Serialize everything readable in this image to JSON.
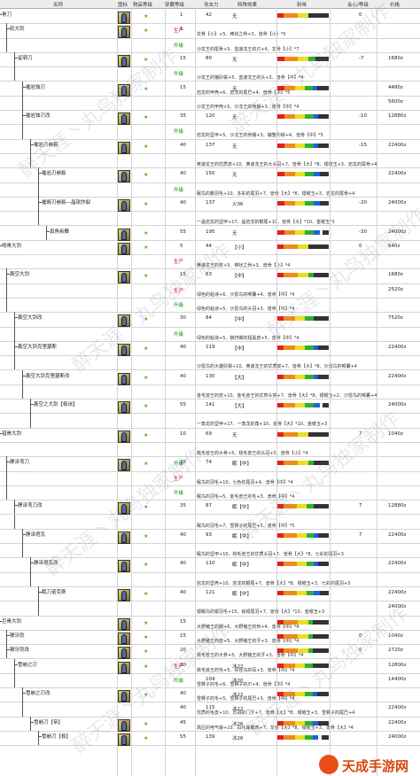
{
  "header": {
    "name": "名称",
    "icon": "图标",
    "rarity": "物品等级",
    "slots": "穿戴等级",
    "attack": "攻击力",
    "special": "特殊效果",
    "sharpness": "斩味",
    "affinity": "会心/等级",
    "price": "价格"
  },
  "colors": {
    "tag_produce": "#e00000",
    "tag_upgrade": "#008800",
    "sharp_red": "#e02020",
    "sharp_orange": "#f08a1c",
    "sharp_yellow": "#e8e020",
    "sharp_green": "#30b030",
    "sharp_blue": "#2060e0",
    "sharp_white": "#f4f4f4",
    "sharp_purple": "#9030c0"
  },
  "watermark": "醉天涯丶丸鸟独家制作",
  "logo": "天成手游网",
  "rows": [
    {
      "name": "骨刀",
      "indent": 0,
      "slot": "1",
      "atk": "42",
      "special": "无",
      "aff": "0",
      "price": "",
      "tag": "",
      "mats": "",
      "sharp": [
        8,
        20,
        14,
        0,
        0,
        0,
        0
      ]
    },
    {
      "name": "轮大剑",
      "indent": 1,
      "slot": "1",
      "atk": "",
      "special": "",
      "aff": "",
      "price": "",
      "tag": "生产",
      "mats": "龙骨【小】+5、棒状之骨+3、兽骨【小】*5",
      "sharp": [
        0,
        0,
        0,
        0,
        0,
        0,
        0
      ]
    },
    {
      "name": "",
      "indent": 1,
      "slot": "",
      "atk": "",
      "special": "",
      "aff": "",
      "price": "",
      "tag": "升级",
      "mats": "沙龙王的尾骨+5、蓝速龙王的爪+4、龙骨【小】*7",
      "sharp": [
        0,
        0,
        0,
        0,
        0,
        0,
        0
      ]
    },
    {
      "name": "鲨颚刀",
      "indent": 2,
      "slot": "15",
      "atk": "80",
      "special": "无",
      "aff": "-7",
      "price": "1680z",
      "tag": "",
      "mats": "",
      "sharp": [
        10,
        18,
        14,
        10,
        0,
        0,
        0
      ]
    },
    {
      "name": "",
      "indent": 2,
      "slot": "",
      "atk": "",
      "special": "",
      "aff": "",
      "price": "",
      "tag": "升级",
      "mats": "沙龙王的猪砂袋+5、蓝速龙王的头+3、兽骨【中】*4",
      "sharp": [
        0,
        0,
        0,
        0,
        0,
        0,
        0
      ]
    },
    {
      "name": "摧岩蚀刃",
      "indent": 3,
      "slot": "15",
      "atk": "",
      "special": "无",
      "aff": "",
      "price": "4480z",
      "tag": "",
      "mats": "岩龙的甲壳+6、岩龙的尾巴+4、兽骨【中】*5",
      "sharp": [
        10,
        14,
        14,
        10,
        6,
        0,
        0
      ]
    },
    {
      "name": "",
      "indent": 3,
      "slot": "",
      "atk": "",
      "special": "",
      "aff": "",
      "price": "5600z",
      "tag": "",
      "mats": "沙龙王的甲壳+5、沙龙王的骨髓+3、兽骨【中】*4",
      "sharp": [
        0,
        0,
        0,
        0,
        0,
        0,
        0
      ]
    },
    {
      "name": "摧岩蚀刃改",
      "indent": 3,
      "slot": "35",
      "atk": "120",
      "special": "无",
      "aff": "-10",
      "price": "12880z",
      "tag": "",
      "mats": "",
      "sharp": [
        10,
        14,
        14,
        12,
        6,
        0,
        0
      ]
    },
    {
      "name": "",
      "indent": 3,
      "slot": "",
      "atk": "",
      "special": "",
      "aff": "",
      "price": "",
      "tag": "升级",
      "mats": "岩龙的坚甲+5、沙龙王的骨髓+3、镰蟹的钳+4、兽骨【中】*5",
      "sharp": [
        0,
        0,
        0,
        0,
        0,
        0,
        0
      ]
    },
    {
      "name": "摧岩刃崩裂",
      "indent": 4,
      "slot": "40",
      "atk": "137",
      "special": "无",
      "aff": "-15",
      "price": "22400z",
      "tag": "",
      "mats": "",
      "sharp": [
        10,
        14,
        14,
        12,
        6,
        0,
        0
      ]
    },
    {
      "name": "",
      "indent": 4,
      "slot": "",
      "atk": "",
      "special": "",
      "aff": "",
      "price": "",
      "tag": "",
      "mats": "黄速龙王的优质皮+10、黄速龙王的大头冠+7、兽骨【大】*8、银曜玉+3、岩龙的尾骨+4",
      "sharp": [
        0,
        0,
        0,
        0,
        0,
        0,
        0
      ]
    },
    {
      "name": "摧岩刃崩裂",
      "indent": 5,
      "slot": "40",
      "atk": "150",
      "special": "无",
      "aff": "",
      "price": "22400z",
      "tag": "",
      "mats": "",
      "sharp": [
        10,
        14,
        14,
        12,
        8,
        0,
        0
      ]
    },
    {
      "name": "",
      "indent": 5,
      "slot": "",
      "atk": "",
      "special": "",
      "aff": "",
      "price": "",
      "tag": "升级",
      "mats": "眠鸟的霸羽毛+10、多彩的尾羽+7、兽骨【大】*8、银曜玉+3、岩龙的尾骨+4",
      "sharp": [
        0,
        0,
        0,
        0,
        0,
        0,
        0
      ]
    },
    {
      "name": "摧毁刃崩裂—晶锐炸裂",
      "indent": 5,
      "slot": "40",
      "atk": "137",
      "special": "火36",
      "aff": "-20",
      "price": "24000z",
      "tag": "",
      "mats": "",
      "sharp": [
        10,
        14,
        14,
        12,
        8,
        0,
        0
      ]
    },
    {
      "name": "",
      "indent": 5,
      "slot": "",
      "atk": "",
      "special": "",
      "aff": "",
      "price": "",
      "tag": "",
      "mats": "一晶岩龙的坚甲+17、晶岩龙的鞭尾+10、兽骨【大】*10、金曜玉*3",
      "sharp": [
        0,
        0,
        0,
        0,
        0,
        0,
        0
      ]
    },
    {
      "name": "真角拆舞",
      "indent": 6,
      "slot": "55",
      "atk": "195",
      "special": "无",
      "aff": "-30",
      "price": "24000z",
      "tag": "",
      "mats": "",
      "sharp": [
        10,
        14,
        14,
        12,
        8,
        4,
        0
      ]
    },
    {
      "name": "啃骨大剑",
      "indent": 0,
      "slot": "5",
      "atk": "44",
      "special": "【小】",
      "aff": "0",
      "price": "640z",
      "tag": "",
      "mats": "",
      "sharp": [
        8,
        20,
        14,
        0,
        0,
        0,
        0
      ]
    },
    {
      "name": "",
      "indent": 0,
      "slot": "",
      "atk": "",
      "special": "",
      "aff": "",
      "price": "",
      "tag": "生产",
      "mats": "黄速龙王的皮+5、棒状之骨+3、兽骨【小】*4",
      "sharp": [
        0,
        0,
        0,
        0,
        0,
        0,
        0
      ]
    },
    {
      "name": "轰空大剑",
      "indent": 1,
      "slot": "15",
      "atk": "63",
      "special": "【中】",
      "aff": "",
      "price": "1680z",
      "tag": "",
      "mats": "",
      "sharp": [
        8,
        20,
        14,
        8,
        0,
        0,
        0
      ]
    },
    {
      "name": "",
      "indent": 1,
      "slot": "",
      "atk": "",
      "special": "",
      "aff": "",
      "price": "2520z",
      "tag": "生产",
      "mats": "绿色的粘液+6、沙雷鸟的喉囊+4、兽骨【中】*4",
      "sharp": [
        0,
        0,
        0,
        0,
        0,
        0,
        0
      ]
    },
    {
      "name": "",
      "indent": 1,
      "slot": "",
      "atk": "",
      "special": "",
      "aff": "",
      "price": "",
      "tag": "升级",
      "mats": "绿色的粘液+5、沙雷鸟的头冠+3、兽骨【中】*4",
      "sharp": [
        0,
        0,
        0,
        0,
        0,
        0,
        0
      ]
    },
    {
      "name": "轰空大剑改",
      "indent": 2,
      "slot": "30",
      "atk": "84",
      "special": "【中】",
      "aff": "",
      "price": "7520z",
      "tag": "",
      "mats": "",
      "sharp": [
        8,
        16,
        14,
        12,
        0,
        0,
        0
      ]
    },
    {
      "name": "",
      "indent": 2,
      "slot": "",
      "atk": "",
      "special": "",
      "aff": "",
      "price": "",
      "tag": "升级",
      "mats": "绿色的粘液+5、狼狩蝶的翅黑皮+5、兽骨【中】*4",
      "sharp": [
        0,
        0,
        0,
        0,
        0,
        0,
        0
      ]
    },
    {
      "name": "轰空大剑克里瑟斯",
      "indent": 2,
      "slot": "40",
      "atk": "119",
      "special": "【中】",
      "aff": "",
      "price": "22400z",
      "tag": "",
      "mats": "",
      "sharp": [
        8,
        16,
        14,
        12,
        6,
        0,
        0
      ]
    },
    {
      "name": "",
      "indent": 2,
      "slot": "",
      "atk": "",
      "special": "",
      "aff": "",
      "price": "",
      "tag": "",
      "mats": "沙雷鸟的大雄砂袋+10、黄速龙王的优质皮+7、兽骨【大】*8、沙雷鸟的喉囊+4",
      "sharp": [
        0,
        0,
        0,
        0,
        0,
        0,
        0
      ]
    },
    {
      "name": "轰空大剑克里瑟斯改",
      "indent": 3,
      "slot": "40",
      "atk": "130",
      "special": "【大】",
      "aff": "",
      "price": "22400z",
      "tag": "",
      "mats": "",
      "sharp": [
        8,
        16,
        14,
        12,
        6,
        0,
        0
      ]
    },
    {
      "name": "",
      "indent": 3,
      "slot": "",
      "atk": "",
      "special": "",
      "aff": "",
      "price": "",
      "tag": "",
      "mats": "金毛兽王的皮+10、金毛兽王的优势头突+7、兽骨【大】*8、银曜玉+2、沙雷鸟的喉囊+4",
      "sharp": [
        0,
        0,
        0,
        0,
        0,
        0,
        0
      ]
    },
    {
      "name": "轰空之大剑【极诀】",
      "indent": 4,
      "slot": "55",
      "atk": "141",
      "special": "【大】",
      "aff": "",
      "price": "24000z",
      "tag": "",
      "mats": "",
      "sharp": [
        8,
        16,
        14,
        12,
        8,
        4,
        0
      ]
    },
    {
      "name": "",
      "indent": 4,
      "slot": "",
      "atk": "",
      "special": "",
      "aff": "",
      "price": "",
      "tag": "",
      "mats": "一角龙的坚甲+17、一角龙的角+10、兽骨【大】*10、金曜玉+3",
      "sharp": [
        0,
        0,
        0,
        0,
        0,
        0,
        0
      ]
    },
    {
      "name": "猎骨大剑",
      "indent": 0,
      "slot": "10",
      "atk": "69",
      "special": "无",
      "aff": "7",
      "price": "1040z",
      "tag": "",
      "mats": "",
      "sharp": [
        8,
        20,
        14,
        0,
        0,
        0,
        0
      ]
    },
    {
      "name": "",
      "indent": 0,
      "slot": "",
      "atk": "",
      "special": "",
      "aff": "",
      "price": "",
      "tag": "",
      "mats": "桃毛兽王的大骨+5、桃毛兽王的头冠+5、兽骨【小】*4",
      "sharp": [
        0,
        0,
        0,
        0,
        0,
        0,
        0
      ]
    },
    {
      "name": "静泽弯刀",
      "indent": 1,
      "slot": "25",
      "atk": "74",
      "special": "眠【中】",
      "aff": "",
      "price": "",
      "tag": "升级",
      "mats": "",
      "sharp": [
        8,
        20,
        14,
        8,
        0,
        0,
        0
      ]
    },
    {
      "name": "",
      "indent": 1,
      "slot": "",
      "atk": "",
      "special": "",
      "aff": "",
      "price": "",
      "tag": "生产",
      "mats": "眠鸟的羽毛+10、七色的尾羽+4、兽骨【中】*4",
      "sharp": [
        0,
        0,
        0,
        0,
        0,
        0,
        0
      ]
    },
    {
      "name": "",
      "indent": 1,
      "slot": "",
      "atk": "",
      "special": "",
      "aff": "",
      "price": "",
      "tag": "升级",
      "mats": "眠鸟的羽毛+5、金毛兽王的毛+3、兽骨【中】*4",
      "sharp": [
        0,
        0,
        0,
        0,
        0,
        0,
        0
      ]
    },
    {
      "name": "静泽弯刀改",
      "indent": 2,
      "slot": "35",
      "atk": "87",
      "special": "眠【中】",
      "aff": "7",
      "price": "12880z",
      "tag": "",
      "mats": "",
      "sharp": [
        8,
        18,
        14,
        10,
        0,
        0,
        0
      ]
    },
    {
      "name": "",
      "indent": 2,
      "slot": "",
      "atk": "",
      "special": "",
      "aff": "",
      "price": "",
      "tag": "",
      "mats": "眠鸟的羽毛+7、雪狮子的尾巴+5、兽骨【中】*5",
      "sharp": [
        0,
        0,
        0,
        0,
        0,
        0,
        0
      ]
    },
    {
      "name": "静泽塔瓦",
      "indent": 3,
      "slot": "40",
      "atk": "93",
      "special": "眠【中】",
      "aff": "7",
      "price": "22400z",
      "tag": "",
      "mats": "",
      "sharp": [
        8,
        18,
        14,
        10,
        6,
        0,
        0
      ]
    },
    {
      "name": "",
      "indent": 3,
      "slot": "",
      "atk": "",
      "special": "",
      "aff": "",
      "price": "",
      "tag": "",
      "mats": "眠鸟的坚甲+10、桃毛兽王的优质头冠+7、兽骨【大】*8、七彩的尾羽+3",
      "sharp": [
        0,
        0,
        0,
        0,
        0,
        0,
        0
      ]
    },
    {
      "name": "静泽塔瓦改",
      "indent": 4,
      "slot": "40",
      "atk": "110",
      "special": "眠【中】",
      "aff": "",
      "price": "22400z",
      "tag": "",
      "mats": "",
      "sharp": [
        8,
        18,
        14,
        10,
        6,
        0,
        0
      ]
    },
    {
      "name": "",
      "indent": 4,
      "slot": "",
      "atk": "",
      "special": "",
      "aff": "",
      "price": "",
      "tag": "",
      "mats": "岩龙的坚壳+10、岩龙的鞭尾+7、兽骨【大】*8、银曜玉+3、七彩的尾羽+3",
      "sharp": [
        0,
        0,
        0,
        0,
        0,
        0,
        0
      ]
    },
    {
      "name": "眠刀诺克斯",
      "indent": 5,
      "slot": "40",
      "atk": "121",
      "special": "眠【中】",
      "aff": "",
      "price": "22400z",
      "tag": "",
      "mats": "",
      "sharp": [
        8,
        18,
        14,
        10,
        8,
        0,
        0
      ]
    },
    {
      "name": "",
      "indent": 5,
      "slot": "",
      "atk": "",
      "special": "",
      "aff": "",
      "price": "24000z",
      "tag": "",
      "mats": "银眠鸟的银羽毛+15、秘银尾羽+7、兽骨【大】*10、金曜玉+3",
      "sharp": [
        0,
        0,
        0,
        0,
        0,
        0,
        0
      ]
    },
    {
      "name": "巨骨大剑",
      "indent": 0,
      "slot": "15",
      "atk": "",
      "special": "",
      "aff": "",
      "price": "",
      "tag": "",
      "mats": "大野猪王的髓+6、大野猪王的骨+4、兽骨【中】*4",
      "sharp": [
        8,
        20,
        14,
        6,
        0,
        0,
        0
      ]
    },
    {
      "name": "獠牙剑",
      "indent": 1,
      "slot": "15",
      "atk": "",
      "special": "",
      "aff": "0",
      "price": "1040z",
      "tag": "",
      "mats": "大野猪王的皮+5、大野猪王的牙+3、兽骨【中】*4",
      "sharp": [
        8,
        20,
        14,
        6,
        0,
        0,
        0
      ]
    },
    {
      "name": "獠牙剑改",
      "indent": 1,
      "slot": "20",
      "atk": "",
      "special": "",
      "aff": "0",
      "price": "2720z",
      "tag": "",
      "mats": "桃毛兽王的大骨+5、大野猪王的牙+3、兽骨【中】*4",
      "sharp": [
        8,
        20,
        14,
        6,
        0,
        0,
        0
      ]
    },
    {
      "name": "雪崩之刃",
      "indent": 2,
      "slot": "30",
      "atk": "",
      "special": "冰22",
      "aff": "",
      "price": "12800z",
      "tag": "生产",
      "mats": "桃毛兽王的毛+5、青怪鸟的耳+3、兽骨【中】*4",
      "sharp": [
        8,
        16,
        14,
        10,
        0,
        0,
        0
      ]
    },
    {
      "name": "",
      "indent": 2,
      "slot": "",
      "atk": "104",
      "special": "冰20",
      "aff": "",
      "price": "14400z",
      "tag": "升级",
      "mats": "雪狮子的毛+6、雪狮子的爪+4、兽骨【中】*4",
      "sharp": [
        0,
        0,
        0,
        0,
        0,
        0,
        0
      ]
    },
    {
      "name": "雪崩之刃改",
      "indent": 3,
      "slot": "40",
      "atk": "",
      "special": "冰22",
      "aff": "",
      "price": "",
      "tag": "",
      "mats": "雪狮子的毛+5、雪狮子的尾巴+3、兽骨【中】*4",
      "sharp": [
        8,
        16,
        14,
        10,
        6,
        0,
        0
      ]
    },
    {
      "name": "",
      "indent": 3,
      "slot": "40",
      "atk": "115",
      "special": "冰22",
      "aff": "",
      "price": "22400z",
      "tag": "",
      "mats": "优质的毛皮+10、历战的门牙+7、兽骨【大】*8、银曜玉+3、雪狮子的尾巴+4",
      "sharp": [
        0,
        0,
        0,
        0,
        0,
        0,
        0
      ]
    },
    {
      "name": "雪崩刀【帝】",
      "indent": 4,
      "slot": "45",
      "atk": "",
      "special": "冰26",
      "aff": "",
      "price": "22400z",
      "tag": "",
      "mats": "高压的电气袋+10、白化霜翼肉+7、龙骨【大】*8、银曜玉+3、兽骨【大】*4",
      "sharp": [
        8,
        16,
        14,
        10,
        8,
        0,
        0
      ]
    },
    {
      "name": "雪崩刀【极】",
      "indent": 5,
      "slot": "55",
      "atk": "139",
      "special": "冰26",
      "aff": "",
      "price": "24000z",
      "tag": "",
      "mats": "",
      "sharp": [
        8,
        16,
        14,
        10,
        8,
        4,
        0
      ]
    }
  ]
}
